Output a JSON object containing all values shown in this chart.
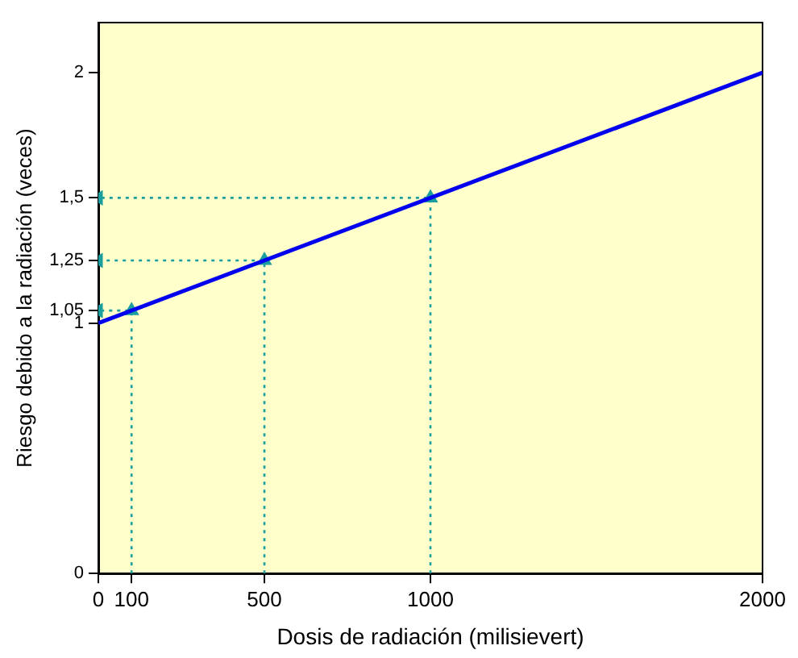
{
  "chart_data": {
    "type": "line",
    "xlabel": "Dosis de radiación (milisievert)",
    "ylabel": "Riesgo debido a la radiación (veces)",
    "series": [
      {
        "color": "#0000ee",
        "x": [
          0,
          2000
        ],
        "values": [
          1,
          2
        ]
      },
      {
        "color": "#1a9e9e",
        "x": [
          100,
          100,
          0
        ],
        "values": [
          0,
          1.05,
          1.05
        ],
        "marker": "triangle",
        "line_style": "dotted"
      },
      {
        "color": "#1a9e9e",
        "x": [
          500,
          500,
          0
        ],
        "values": [
          0,
          1.25,
          1.25
        ],
        "marker": "triangle",
        "line_style": "dotted"
      },
      {
        "color": "#1a9e9e",
        "x": [
          1000,
          1000,
          0
        ],
        "values": [
          0,
          1.5,
          1.5
        ],
        "marker": "triangle",
        "line_style": "dotted"
      }
    ],
    "xlim": [
      0,
      2000
    ],
    "xticks": [
      0,
      {
        "value": 100,
        "label": "100"
      },
      500,
      1000,
      2000
    ],
    "ylim": [
      0,
      2.2
    ],
    "yticks": [
      0,
      1,
      {
        "value": 1.05,
        "label": "1,05"
      },
      {
        "value": 1.25,
        "label": "1,25"
      },
      {
        "value": 1.5,
        "label": "1,5"
      },
      2
    ],
    "grid": false,
    "legend": false
  }
}
